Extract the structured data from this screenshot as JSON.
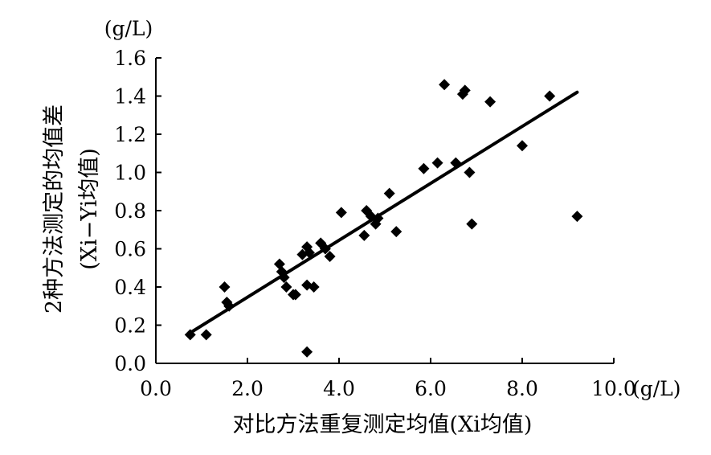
{
  "chart_data": {
    "type": "scatter",
    "title": "",
    "xlabel": "对比方法重复测定均值(Xi均值)",
    "ylabel_line1": "2种方法测定的均值差",
    "ylabel_line2": "(Xi−Yi均值)",
    "y_unit": "(g/L)",
    "x_unit": "(g/L)",
    "xlim": [
      0,
      10
    ],
    "ylim": [
      0,
      1.6
    ],
    "x_ticks": [
      0,
      2,
      4,
      6,
      8,
      10
    ],
    "x_tick_labels": [
      "0.0",
      "2.0",
      "4.0",
      "6.0",
      "8.0",
      "10.0"
    ],
    "y_ticks": [
      0,
      0.2,
      0.4,
      0.6,
      0.8,
      1.0,
      1.2,
      1.4,
      1.6
    ],
    "y_tick_labels": [
      "0.0",
      "0.2",
      "0.4",
      "0.6",
      "0.8",
      "1.0",
      "1.2",
      "1.4",
      "1.6"
    ],
    "grid": false,
    "legend": "none",
    "marker": "diamond",
    "marker_color": "#000000",
    "points": [
      [
        0.75,
        0.15
      ],
      [
        1.1,
        0.15
      ],
      [
        1.5,
        0.4
      ],
      [
        1.55,
        0.32
      ],
      [
        1.6,
        0.3
      ],
      [
        2.7,
        0.52
      ],
      [
        2.75,
        0.48
      ],
      [
        2.8,
        0.45
      ],
      [
        2.85,
        0.4
      ],
      [
        3.0,
        0.36
      ],
      [
        3.05,
        0.36
      ],
      [
        3.2,
        0.57
      ],
      [
        3.3,
        0.61
      ],
      [
        3.35,
        0.58
      ],
      [
        3.3,
        0.41
      ],
      [
        3.45,
        0.4
      ],
      [
        3.3,
        0.06
      ],
      [
        3.6,
        0.63
      ],
      [
        3.7,
        0.6
      ],
      [
        3.8,
        0.56
      ],
      [
        4.05,
        0.79
      ],
      [
        4.55,
        0.67
      ],
      [
        4.6,
        0.8
      ],
      [
        4.7,
        0.77
      ],
      [
        4.8,
        0.73
      ],
      [
        4.85,
        0.76
      ],
      [
        5.1,
        0.89
      ],
      [
        5.25,
        0.69
      ],
      [
        5.85,
        1.02
      ],
      [
        6.15,
        1.05
      ],
      [
        6.3,
        1.46
      ],
      [
        6.55,
        1.05
      ],
      [
        6.7,
        1.41
      ],
      [
        6.75,
        1.43
      ],
      [
        6.85,
        1.0
      ],
      [
        6.9,
        0.73
      ],
      [
        7.3,
        1.37
      ],
      [
        8.0,
        1.14
      ],
      [
        8.6,
        1.4
      ],
      [
        9.2,
        0.77
      ]
    ],
    "regression": {
      "x": [
        0.75,
        9.2
      ],
      "y": [
        0.16,
        1.42
      ],
      "color": "#000000"
    }
  }
}
